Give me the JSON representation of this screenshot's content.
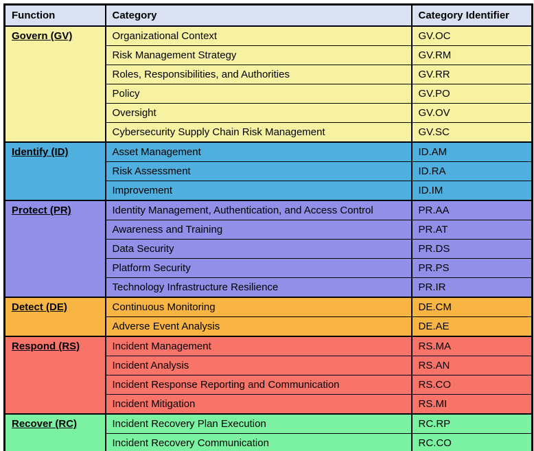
{
  "table": {
    "headers": [
      "Function",
      "Category",
      "Category Identifier"
    ],
    "header_color": "#D9E1F2",
    "sections": [
      {
        "function": "Govern (GV)",
        "color": "#F7F2A1",
        "rows": [
          {
            "category": "Organizational Context",
            "id": "GV.OC"
          },
          {
            "category": "Risk Management Strategy",
            "id": "GV.RM"
          },
          {
            "category": "Roles, Responsibilities, and Authorities",
            "id": "GV.RR"
          },
          {
            "category": "Policy",
            "id": "GV.PO"
          },
          {
            "category": "Oversight",
            "id": "GV.OV"
          },
          {
            "category": "Cybersecurity Supply Chain Risk Management",
            "id": "GV.SC"
          }
        ]
      },
      {
        "function": "Identify (ID)",
        "color": "#4FAFDE",
        "rows": [
          {
            "category": "Asset Management",
            "id": "ID.AM"
          },
          {
            "category": "Risk Assessment",
            "id": "ID.RA"
          },
          {
            "category": "Improvement",
            "id": "ID.IM"
          }
        ]
      },
      {
        "function": "Protect (PR)",
        "color": "#918FE8",
        "rows": [
          {
            "category": "Identity Management, Authentication, and Access Control",
            "id": "PR.AA"
          },
          {
            "category": "Awareness and Training",
            "id": "PR.AT"
          },
          {
            "category": "Data Security",
            "id": "PR.DS"
          },
          {
            "category": "Platform Security",
            "id": "PR.PS"
          },
          {
            "category": "Technology Infrastructure Resilience",
            "id": "PR.IR"
          }
        ]
      },
      {
        "function": "Detect (DE)",
        "color": "#F9B543",
        "rows": [
          {
            "category": "Continuous Monitoring",
            "id": "DE.CM"
          },
          {
            "category": "Adverse Event Analysis",
            "id": "DE.AE"
          }
        ]
      },
      {
        "function": "Respond (RS)",
        "color": "#F97468",
        "rows": [
          {
            "category": "Incident Management",
            "id": "RS.MA"
          },
          {
            "category": "Incident Analysis",
            "id": "RS.AN"
          },
          {
            "category": "Incident Response Reporting and Communication",
            "id": "RS.CO"
          },
          {
            "category": "Incident Mitigation",
            "id": "RS.MI"
          }
        ]
      },
      {
        "function": "Recover (RC)",
        "color": "#7BF1A2",
        "rows": [
          {
            "category": "Incident Recovery Plan Execution",
            "id": "RC.RP"
          },
          {
            "category": "Incident Recovery Communication",
            "id": "RC.CO"
          }
        ]
      }
    ]
  }
}
